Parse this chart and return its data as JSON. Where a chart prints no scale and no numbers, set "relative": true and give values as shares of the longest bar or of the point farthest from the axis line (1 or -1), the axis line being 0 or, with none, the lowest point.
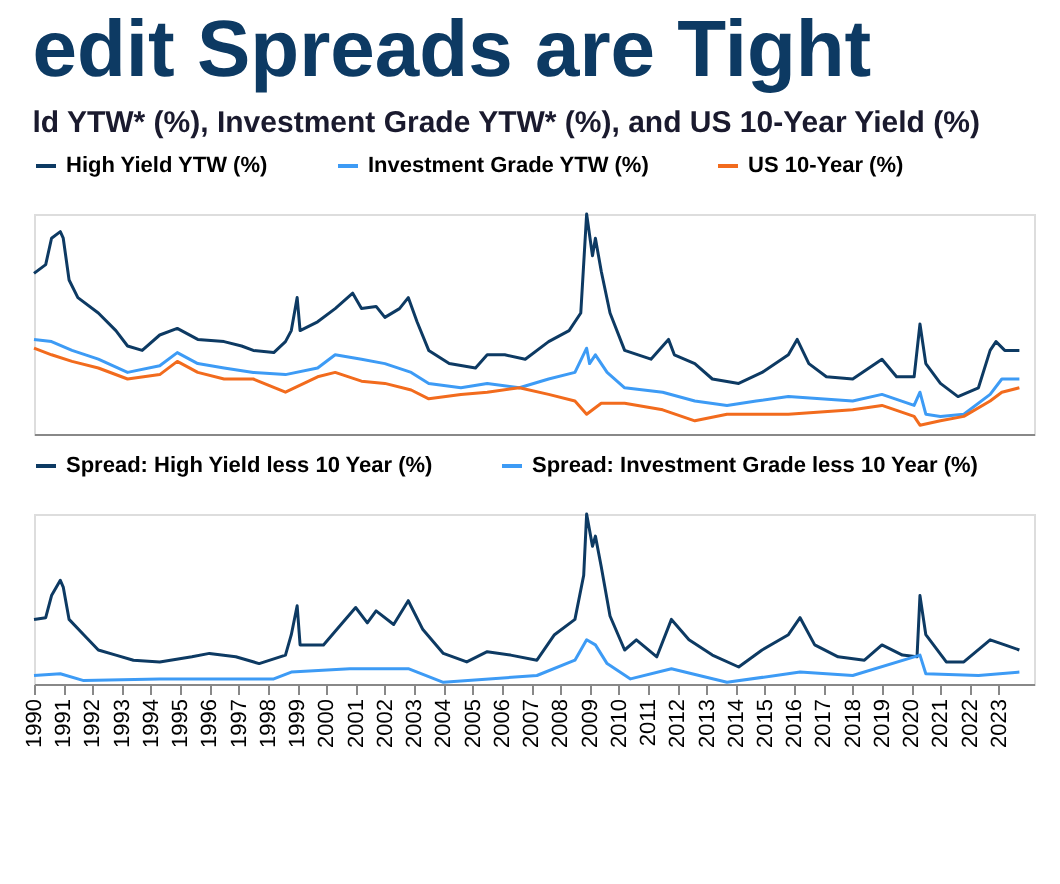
{
  "chart_data": [
    {
      "type": "line",
      "title": "edit Spreads are Tight",
      "subtitle": "ld YTW* (%), Investment Grade YTW* (%), and US 10-Year Yield (%)",
      "relative": true,
      "xlim": [
        1990,
        2024.2
      ],
      "tick_labels": false,
      "grid": false,
      "legend": "top",
      "series": [
        {
          "name": "High Yield YTW (%)",
          "color": "#0d3a63",
          "x": [
            1990.0,
            1990.4,
            1990.6,
            1990.9,
            1991.0,
            1991.2,
            1991.5,
            1992.2,
            1992.8,
            1993.2,
            1993.7,
            1994.3,
            1994.9,
            1995.6,
            1996.5,
            1997.1,
            1997.5,
            1998.2,
            1998.6,
            1998.8,
            1999.0,
            1999.1,
            1999.7,
            2000.3,
            2000.9,
            2001.2,
            2001.7,
            2002.0,
            2002.5,
            2002.8,
            2003.1,
            2003.5,
            2004.2,
            2005.1,
            2005.5,
            2006.1,
            2006.8,
            2007.6,
            2008.3,
            2008.7,
            2008.9,
            2009.1,
            2009.2,
            2009.4,
            2009.7,
            2010.2,
            2011.1,
            2011.7,
            2011.9,
            2012.6,
            2013.2,
            2014.1,
            2014.9,
            2015.8,
            2016.1,
            2016.5,
            2017.1,
            2018.0,
            2019.0,
            2019.5,
            2020.1,
            2020.3,
            2020.5,
            2021.0,
            2021.6,
            2022.3,
            2022.7,
            2022.9,
            2023.2,
            2023.7
          ],
          "values": [
            0.73,
            0.77,
            0.89,
            0.92,
            0.89,
            0.7,
            0.62,
            0.55,
            0.47,
            0.4,
            0.38,
            0.45,
            0.48,
            0.43,
            0.42,
            0.4,
            0.38,
            0.37,
            0.42,
            0.47,
            0.62,
            0.47,
            0.51,
            0.57,
            0.64,
            0.57,
            0.58,
            0.53,
            0.57,
            0.62,
            0.51,
            0.38,
            0.32,
            0.3,
            0.36,
            0.36,
            0.34,
            0.42,
            0.47,
            0.55,
            1,
            0.81,
            0.89,
            0.74,
            0.55,
            0.38,
            0.34,
            0.43,
            0.36,
            0.32,
            0.25,
            0.23,
            0.28,
            0.36,
            0.43,
            0.32,
            0.26,
            0.25,
            0.34,
            0.26,
            0.26,
            0.5,
            0.32,
            0.23,
            0.17,
            0.21,
            0.38,
            0.42,
            0.38,
            0.38
          ]
        },
        {
          "name": "Investment Grade YTW (%)",
          "color": "#3d9bf5",
          "x": [
            1990.0,
            1990.6,
            1991.3,
            1992.2,
            1993.2,
            1994.3,
            1994.9,
            1995.6,
            1996.5,
            1997.5,
            1998.6,
            1999.7,
            2000.3,
            2001.2,
            2002.0,
            2002.9,
            2003.5,
            2004.6,
            2005.5,
            2006.6,
            2007.6,
            2008.5,
            2008.9,
            2009.0,
            2009.2,
            2009.6,
            2010.2,
            2011.5,
            2012.6,
            2013.7,
            2014.7,
            2015.8,
            2016.9,
            2018.0,
            2019.0,
            2020.1,
            2020.3,
            2020.5,
            2021.0,
            2021.8,
            2022.7,
            2023.1,
            2023.7
          ],
          "values": [
            0.43,
            0.42,
            0.38,
            0.34,
            0.28,
            0.31,
            0.37,
            0.32,
            0.3,
            0.28,
            0.27,
            0.3,
            0.36,
            0.34,
            0.32,
            0.28,
            0.23,
            0.21,
            0.23,
            0.21,
            0.25,
            0.28,
            0.39,
            0.32,
            0.36,
            0.28,
            0.21,
            0.19,
            0.15,
            0.13,
            0.15,
            0.17,
            0.16,
            0.15,
            0.18,
            0.13,
            0.19,
            0.09,
            0.08,
            0.09,
            0.18,
            0.25,
            0.25
          ]
        },
        {
          "name": "US 10-Year (%)",
          "color": "#f26b1d",
          "x": [
            1990.0,
            1990.6,
            1991.3,
            1992.2,
            1993.2,
            1994.3,
            1994.9,
            1995.6,
            1996.5,
            1997.5,
            1998.6,
            1999.7,
            2000.3,
            2001.2,
            2002.0,
            2002.9,
            2003.5,
            2004.6,
            2005.5,
            2006.6,
            2007.6,
            2008.5,
            2008.9,
            2009.4,
            2010.2,
            2011.5,
            2012.6,
            2013.7,
            2014.7,
            2015.8,
            2016.9,
            2018.0,
            2019.0,
            2020.1,
            2020.3,
            2021.0,
            2021.8,
            2022.7,
            2023.1,
            2023.7
          ],
          "values": [
            0.39,
            0.36,
            0.33,
            0.3,
            0.25,
            0.27,
            0.33,
            0.28,
            0.25,
            0.25,
            0.19,
            0.26,
            0.28,
            0.24,
            0.23,
            0.2,
            0.16,
            0.18,
            0.19,
            0.21,
            0.18,
            0.15,
            0.09,
            0.14,
            0.14,
            0.11,
            0.06,
            0.09,
            0.09,
            0.09,
            0.1,
            0.11,
            0.13,
            0.08,
            0.04,
            0.06,
            0.08,
            0.15,
            0.19,
            0.21
          ]
        }
      ]
    },
    {
      "type": "line",
      "relative": true,
      "xlim": [
        1990,
        2024.2
      ],
      "xticks": [
        1990,
        1991,
        1992,
        1993,
        1994,
        1995,
        1996,
        1997,
        1998,
        1999,
        2000,
        2001,
        2002,
        2003,
        2004,
        2005,
        2006,
        2007,
        2008,
        2009,
        2010,
        2011,
        2012,
        2013,
        2014,
        2015,
        2016,
        2017,
        2018,
        2019,
        2020,
        2021,
        2022,
        2023
      ],
      "tick_labels": "x",
      "grid": false,
      "legend": "top",
      "series": [
        {
          "name": "Spread: High Yield less 10 Year (%)",
          "color": "#0d3a63",
          "x": [
            1990.0,
            1990.4,
            1990.6,
            1990.9,
            1991.0,
            1991.2,
            1991.7,
            1992.2,
            1992.8,
            1993.4,
            1994.3,
            1995.4,
            1996.0,
            1996.9,
            1997.7,
            1998.6,
            1998.8,
            1999.0,
            1999.1,
            1999.9,
            2000.5,
            2001.0,
            2001.4,
            2001.7,
            2002.3,
            2002.8,
            2003.3,
            2004.0,
            2004.8,
            2005.5,
            2006.3,
            2007.2,
            2007.8,
            2008.5,
            2008.8,
            2008.9,
            2009.1,
            2009.2,
            2009.4,
            2009.7,
            2010.2,
            2010.6,
            2011.3,
            2011.8,
            2012.4,
            2013.2,
            2014.1,
            2014.9,
            2015.8,
            2016.2,
            2016.7,
            2017.5,
            2018.4,
            2019.0,
            2019.7,
            2020.2,
            2020.3,
            2020.5,
            2021.2,
            2021.8,
            2022.7,
            2023.2,
            2023.7
          ],
          "values": [
            0.38,
            0.39,
            0.52,
            0.61,
            0.57,
            0.38,
            0.29,
            0.2,
            0.17,
            0.14,
            0.13,
            0.16,
            0.18,
            0.16,
            0.12,
            0.17,
            0.29,
            0.46,
            0.23,
            0.23,
            0.35,
            0.45,
            0.36,
            0.43,
            0.35,
            0.49,
            0.32,
            0.18,
            0.13,
            0.19,
            0.17,
            0.14,
            0.29,
            0.38,
            0.64,
            1,
            0.81,
            0.87,
            0.69,
            0.4,
            0.2,
            0.26,
            0.16,
            0.38,
            0.26,
            0.17,
            0.1,
            0.2,
            0.29,
            0.39,
            0.23,
            0.16,
            0.14,
            0.23,
            0.17,
            0.16,
            0.52,
            0.29,
            0.13,
            0.13,
            0.26,
            0.23,
            0.2
          ]
        },
        {
          "name": "Spread: Investment Grade less 10 Year (%)",
          "color": "#3d9bf5",
          "x": [
            1990.0,
            1990.9,
            1991.7,
            1994.3,
            1996.5,
            1998.2,
            1998.8,
            2000.8,
            2002.8,
            2004.0,
            2007.2,
            2008.5,
            2008.9,
            2009.2,
            2009.6,
            2010.4,
            2011.8,
            2013.7,
            2016.2,
            2018.0,
            2020.3,
            2020.5,
            2022.3,
            2023.7
          ],
          "values": [
            0.05,
            0.06,
            0.02,
            0.03,
            0.03,
            0.03,
            0.07,
            0.09,
            0.09,
            0.01,
            0.05,
            0.14,
            0.26,
            0.23,
            0.12,
            0.03,
            0.09,
            0.01,
            0.07,
            0.05,
            0.17,
            0.06,
            0.05,
            0.07
          ]
        }
      ]
    }
  ]
}
